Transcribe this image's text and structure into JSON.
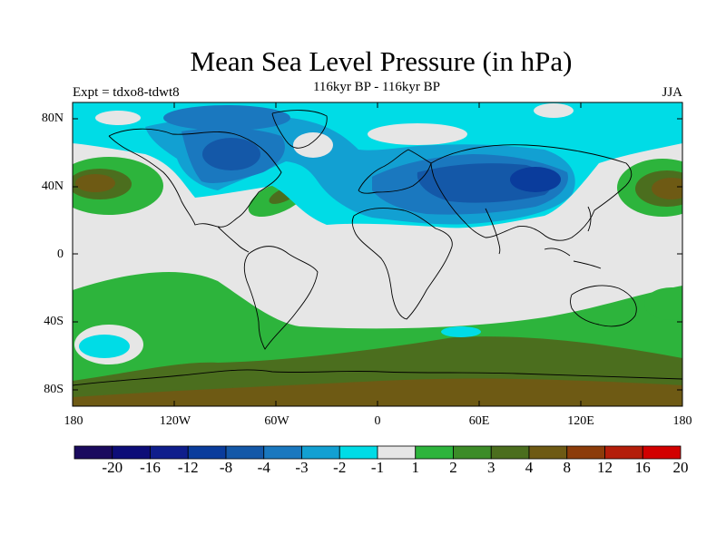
{
  "title": "Mean Sea Level Pressure (in hPa)",
  "subtitle": "116kyr BP - 116kyr BP",
  "experiment": "Expt = tdxo8-tdwt8",
  "season": "JJA",
  "lat_ticks": [
    "80N",
    "40N",
    "0",
    "40S",
    "80S"
  ],
  "lon_ticks": [
    "180",
    "120W",
    "60W",
    "0",
    "60E",
    "120E",
    "180"
  ],
  "colorbar": {
    "labels": [
      "-20",
      "-16",
      "-12",
      "-8",
      "-4",
      "-3",
      "-2",
      "-1",
      "1",
      "2",
      "3",
      "4",
      "8",
      "12",
      "16",
      "20"
    ],
    "colors": [
      "#1a0a5e",
      "#0d0d78",
      "#0f1e8c",
      "#0a3c9c",
      "#1458a8",
      "#1a78bf",
      "#12a0d2",
      "#00dce6",
      "#e6e6e6",
      "#2db43c",
      "#3c8c28",
      "#4b6e1e",
      "#6e5a14",
      "#8c3c0a",
      "#b41e0a",
      "#d20000"
    ]
  },
  "colors": {
    "neutral": "#e6e6e6",
    "cyan": "#00dce6",
    "light_blue": "#12a0d2",
    "mid_blue": "#1a78bf",
    "blue": "#1458a8",
    "dark_blue": "#0a3c9c",
    "green": "#2db43c",
    "dark_green": "#3c8c28",
    "olive": "#4b6e1e",
    "brown": "#6e5a14"
  }
}
